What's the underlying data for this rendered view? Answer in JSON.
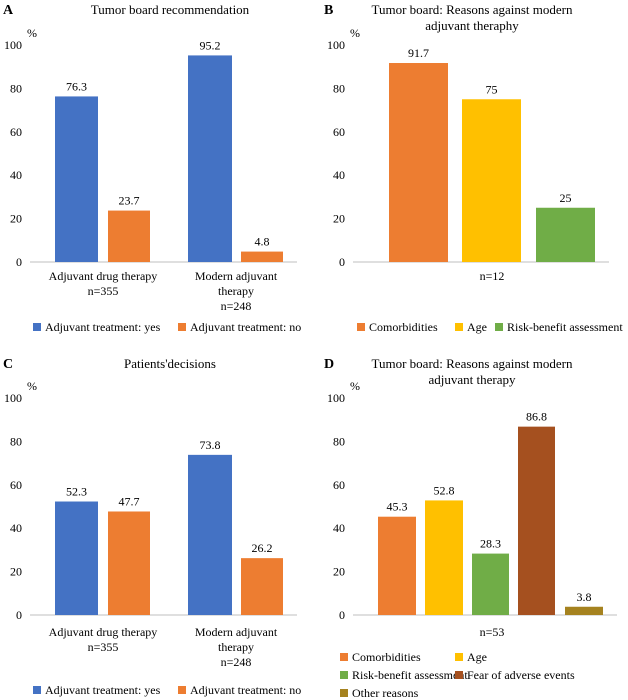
{
  "chart_data": [
    {
      "panel": "A",
      "type": "bar",
      "title": [
        "Tumor board recommendation"
      ],
      "unit_label": "%",
      "ylim": [
        0,
        100
      ],
      "yticks": [
        0,
        20,
        40,
        60,
        80,
        100
      ],
      "grid": false,
      "groups": [
        {
          "label": [
            "Adjuvant drug therapy",
            "n=355"
          ],
          "values": [
            76.3,
            23.7
          ],
          "value_labels": [
            "76.3",
            "23.7"
          ]
        },
        {
          "label": [
            "Modern adjuvant",
            "therapy",
            "n=248"
          ],
          "values": [
            95.2,
            4.8
          ],
          "value_labels": [
            "95.2",
            "4.8"
          ]
        }
      ],
      "series": [
        {
          "name": "Adjuvant treatment: yes",
          "color": "#4472C4"
        },
        {
          "name": "Adjuvant treatment: no",
          "color": "#ED7D31"
        }
      ],
      "legend_position": "bottom"
    },
    {
      "panel": "B",
      "type": "bar",
      "title": [
        "Tumor board: Reasons against modern",
        "adjuvant theraphy"
      ],
      "unit_label": "%",
      "ylim": [
        0,
        100
      ],
      "yticks": [
        0,
        20,
        40,
        60,
        80,
        100
      ],
      "grid": false,
      "groups": [
        {
          "label": [
            "n=12"
          ],
          "values": [
            91.7,
            75,
            25
          ],
          "value_labels": [
            "91.7",
            "75",
            "25"
          ]
        }
      ],
      "series": [
        {
          "name": "Comorbidities",
          "color": "#ED7D31"
        },
        {
          "name": "Age",
          "color": "#FFC000"
        },
        {
          "name": "Risk-benefit assessment",
          "color": "#70AD47"
        }
      ],
      "legend_position": "bottom"
    },
    {
      "panel": "C",
      "type": "bar",
      "title": [
        "Patients'decisions"
      ],
      "unit_label": "%",
      "ylim": [
        0,
        100
      ],
      "yticks": [
        0,
        20,
        40,
        60,
        80,
        100
      ],
      "grid": false,
      "groups": [
        {
          "label": [
            "Adjuvant drug therapy",
            "n=355"
          ],
          "values": [
            52.3,
            47.7
          ],
          "value_labels": [
            "52.3",
            "47.7"
          ]
        },
        {
          "label": [
            "Modern adjuvant",
            "therapy",
            "n=248"
          ],
          "values": [
            73.8,
            26.2
          ],
          "value_labels": [
            "73.8",
            "26.2"
          ]
        }
      ],
      "series": [
        {
          "name": "Adjuvant treatment: yes",
          "color": "#4472C4"
        },
        {
          "name": "Adjuvant treatment: no",
          "color": "#ED7D31"
        }
      ],
      "legend_position": "bottom"
    },
    {
      "panel": "D",
      "type": "bar",
      "title": [
        "Tumor board: Reasons against modern",
        "adjuvant therapy"
      ],
      "unit_label": "%",
      "ylim": [
        0,
        100
      ],
      "yticks": [
        0,
        20,
        40,
        60,
        80,
        100
      ],
      "grid": false,
      "groups": [
        {
          "label": [
            "n=53"
          ],
          "values": [
            45.3,
            52.8,
            28.3,
            86.8,
            3.8
          ],
          "value_labels": [
            "45.3",
            "52.8",
            "28.3",
            "86.8",
            "3.8"
          ]
        }
      ],
      "series": [
        {
          "name": "Comorbidities",
          "color": "#ED7D31"
        },
        {
          "name": "Age",
          "color": "#FFC000"
        },
        {
          "name": "Risk-benefit assessment",
          "color": "#70AD47"
        },
        {
          "name": "Fear of adverse events",
          "color": "#A5501F"
        },
        {
          "name": "Other reasons",
          "color": "#A5821F"
        }
      ],
      "legend_position": "bottom"
    }
  ]
}
